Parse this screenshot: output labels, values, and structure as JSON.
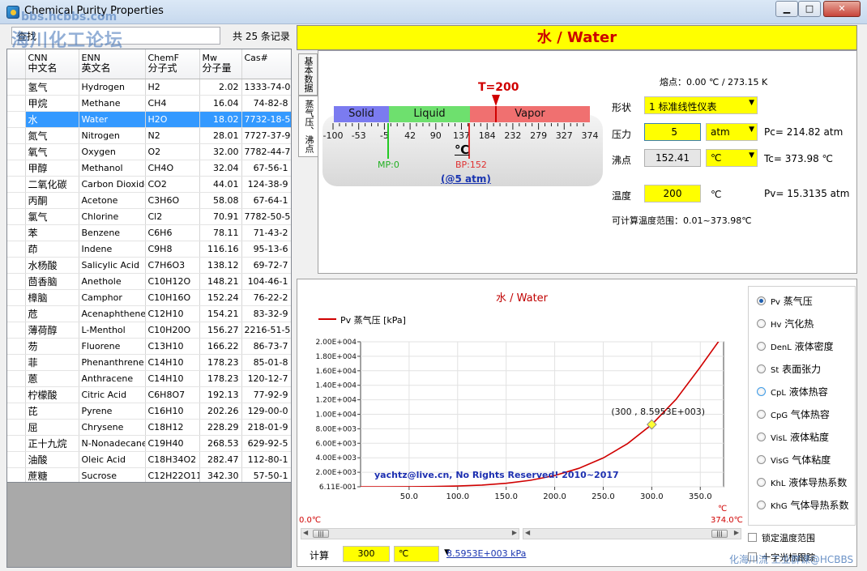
{
  "window": {
    "title": "Chemical Purity Properties",
    "min_icon": "minimize-icon",
    "max_icon": "maximize-icon",
    "close_icon": "close-icon"
  },
  "watermarks": {
    "site": "bbs.hcbbs.com",
    "forum": "海川化工论坛",
    "credit": "化海川流 工业群课@HCBBS"
  },
  "search": {
    "value": "查找",
    "count": "共 25 条记录"
  },
  "table": {
    "headers": [
      {
        "en": "CNN",
        "cn": "中文名"
      },
      {
        "en": "ENN",
        "cn": "英文名"
      },
      {
        "en": "ChemF",
        "cn": "分子式"
      },
      {
        "en": "Mw",
        "cn": "分子量"
      },
      {
        "en": "Cas#",
        "cn": ""
      }
    ],
    "rows": [
      [
        "氢气",
        "Hydrogen",
        "H2",
        "2.02",
        "1333-74-0"
      ],
      [
        "甲烷",
        "Methane",
        "CH4",
        "16.04",
        "74-82-8"
      ],
      [
        "水",
        "Water",
        "H2O",
        "18.02",
        "7732-18-5"
      ],
      [
        "氮气",
        "Nitrogen",
        "N2",
        "28.01",
        "7727-37-9"
      ],
      [
        "氧气",
        "Oxygen",
        "O2",
        "32.00",
        "7782-44-7"
      ],
      [
        "甲醇",
        "Methanol",
        "CH4O",
        "32.04",
        "67-56-1"
      ],
      [
        "二氧化碳",
        "Carbon Dioxide",
        "CO2",
        "44.01",
        "124-38-9"
      ],
      [
        "丙酮",
        "Acetone",
        "C3H6O",
        "58.08",
        "67-64-1"
      ],
      [
        "氯气",
        "Chlorine",
        "Cl2",
        "70.91",
        "7782-50-5"
      ],
      [
        "苯",
        "Benzene",
        "C6H6",
        "78.11",
        "71-43-2"
      ],
      [
        "茚",
        "Indene",
        "C9H8",
        "116.16",
        "95-13-6"
      ],
      [
        "水杨酸",
        "Salicylic Acid",
        "C7H6O3",
        "138.12",
        "69-72-7"
      ],
      [
        "茴香脑",
        "Anethole",
        "C10H12O",
        "148.21",
        "104-46-1"
      ],
      [
        "樟脑",
        "Camphor",
        "C10H16O",
        "152.24",
        "76-22-2"
      ],
      [
        "苊",
        "Acenaphthene",
        "C12H10",
        "154.21",
        "83-32-9"
      ],
      [
        "薄荷醇",
        "L-Menthol",
        "C10H20O",
        "156.27",
        "2216-51-5"
      ],
      [
        "芴",
        "Fluorene",
        "C13H10",
        "166.22",
        "86-73-7"
      ],
      [
        "菲",
        "Phenanthrene",
        "C14H10",
        "178.23",
        "85-01-8"
      ],
      [
        "蒽",
        "Anthracene",
        "C14H10",
        "178.23",
        "120-12-7"
      ],
      [
        "柠檬酸",
        "Citric Acid",
        "C6H8O7",
        "192.13",
        "77-92-9"
      ],
      [
        "芘",
        "Pyrene",
        "C16H10",
        "202.26",
        "129-00-0"
      ],
      [
        "屈",
        "Chrysene",
        "C18H12",
        "228.29",
        "218-01-9"
      ],
      [
        "正十九烷",
        "N-Nonadecane",
        "C19H40",
        "268.53",
        "629-92-5"
      ],
      [
        "油酸",
        "Oleic Acid",
        "C18H34O2",
        "282.47",
        "112-80-1"
      ],
      [
        "蔗糖",
        "Sucrose",
        "C12H22O11",
        "342.30",
        "57-50-1"
      ]
    ],
    "selected_row": 2
  },
  "header": {
    "title": "水 / Water",
    "tab_basic": "基本数据",
    "tab_vp": "蒸气压、沸点"
  },
  "gauge": {
    "phases": [
      "Solid",
      "Liquid",
      "Vapor"
    ],
    "ticks": [
      "-100",
      "-53",
      "-5",
      "42",
      "90",
      "137",
      "184",
      "232",
      "279",
      "327",
      "374"
    ],
    "t_marker": "T=200",
    "mp": "MP:0",
    "bp": "BP:152",
    "unit": "℃",
    "at": "(@5 atm)"
  },
  "form": {
    "melting": "熔点：0.00 ℃ / 273.15 K",
    "state_label": "形状",
    "state_value": "1 标准线性仪表",
    "pressure_label": "压力",
    "pressure_value": "5",
    "pressure_unit": "atm",
    "pc": "Pc= 214.82 atm",
    "bp_label": "沸点",
    "bp_value": "152.41",
    "bp_unit": "℃",
    "tc": "Tc= 373.98 ℃",
    "temp_label": "温度",
    "temp_value": "200",
    "temp_unit": "℃",
    "pv": "Pv= 15.3135 atm",
    "range": "可计算温度范围：0.01~373.98℃"
  },
  "chart_data": {
    "type": "line",
    "title": "水 / Water",
    "series": [
      {
        "name": "Pv 蒸气压 [kPa]",
        "color": "#d00000",
        "x": [
          0.01,
          25,
          50,
          75,
          100,
          125,
          150,
          175,
          200,
          225,
          250,
          275,
          300,
          325,
          350,
          374
        ],
        "values": [
          0.611,
          3.17,
          12.35,
          38.6,
          101.3,
          232,
          476,
          892,
          1554,
          2548,
          3973,
          5945,
          8595,
          12060,
          16530,
          22000
        ]
      }
    ],
    "highlight": {
      "x": 300,
      "y": 8595.3,
      "label": "(300 , 8.5953E+003)"
    },
    "x_ticks": [
      "50.0",
      "100.0",
      "150.0",
      "200.0",
      "250.0",
      "300.0",
      "350.0"
    ],
    "x_tick_values": [
      50,
      100,
      150,
      200,
      250,
      300,
      350
    ],
    "y_ticks": [
      "6.11E-001",
      "2.00E+003",
      "4.00E+003",
      "6.00E+003",
      "8.00E+003",
      "1.00E+004",
      "1.20E+004",
      "1.40E+004",
      "1.60E+004",
      "1.80E+004",
      "2.00E+004"
    ],
    "y_tick_values": [
      0.611,
      2000,
      4000,
      6000,
      8000,
      10000,
      12000,
      14000,
      16000,
      18000,
      20000
    ],
    "xlim": [
      0,
      374
    ],
    "ylim": [
      0.611,
      20000
    ],
    "x_unit": "℃",
    "range_min": "0.0℃",
    "range_max": "374.0℃",
    "watermark": "yachtz@live.cn, No Rights Reserved! 2010~2017",
    "grid": true
  },
  "properties": [
    {
      "code": "Pv",
      "label": "蒸气压",
      "icon": "radio-icon"
    },
    {
      "code": "Hv",
      "label": "汽化热",
      "icon": "radio-icon"
    },
    {
      "code": "DenL",
      "label": "液体密度",
      "icon": "radio-icon"
    },
    {
      "code": "St",
      "label": "表面张力",
      "icon": "radio-icon"
    },
    {
      "code": "CpL",
      "label": "液体热容",
      "icon": "radio-icon"
    },
    {
      "code": "CpG",
      "label": "气体热容",
      "icon": "radio-icon"
    },
    {
      "code": "VisL",
      "label": "液体粘度",
      "icon": "radio-icon"
    },
    {
      "code": "VisG",
      "label": "气体粘度",
      "icon": "radio-icon"
    },
    {
      "code": "KhL",
      "label": "液体导热系数",
      "icon": "radio-icon"
    },
    {
      "code": "KhG",
      "label": "气体导热系数",
      "icon": "radio-icon"
    }
  ],
  "lock_range": "锁定温度范围",
  "lock_cursor": "十字光标跟踪",
  "calc": {
    "label": "计算",
    "temp": "300",
    "unit": "℃",
    "result": "8.5953E+003 kPa"
  }
}
